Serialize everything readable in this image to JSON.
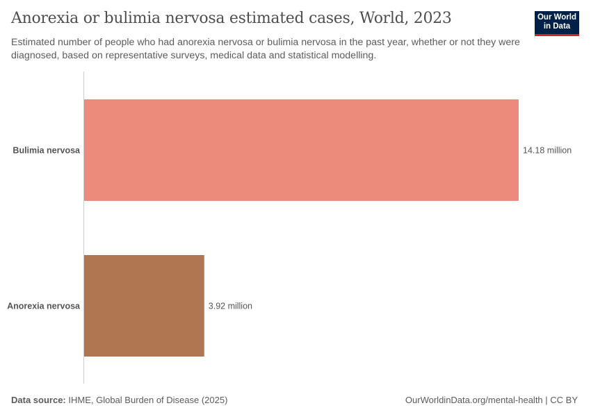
{
  "header": {
    "title": "Anorexia or bulimia nervosa estimated cases, World, 2023",
    "subtitle": "Estimated number of people who had anorexia nervosa or bulimia nervosa in the past year, whether or not they were diagnosed, based on representative surveys, medical data and statistical modelling.",
    "logo_text": "Our World in Data"
  },
  "footer": {
    "source_label": "Data source:",
    "source_value": "IHME, Global Burden of Disease (2025)",
    "url": "OurWorldinData.org/mental-health | CC BY"
  },
  "chart_data": {
    "type": "bar",
    "orientation": "horizontal",
    "categories": [
      "Bulimia nervosa",
      "Anorexia nervosa"
    ],
    "values": [
      14.18,
      3.92
    ],
    "value_labels": [
      "14.18 million",
      "3.92 million"
    ],
    "unit": "million",
    "colors": [
      "#ec8b7b",
      "#b07652"
    ],
    "xlim": [
      0,
      14.18
    ],
    "grid": false
  }
}
